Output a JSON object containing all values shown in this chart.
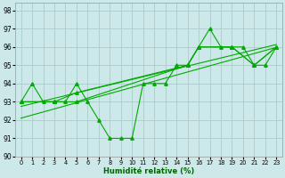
{
  "xlabel": "Humidité relative (%)",
  "background_color": "#cce8e8",
  "grid_color": "#aacccc",
  "line_color": "#00aa00",
  "xlim": [
    -0.5,
    23.5
  ],
  "ylim": [
    90,
    98.4
  ],
  "yticks": [
    90,
    91,
    92,
    93,
    94,
    95,
    96,
    97,
    98
  ],
  "xticks": [
    0,
    1,
    2,
    3,
    4,
    5,
    6,
    7,
    8,
    9,
    10,
    11,
    12,
    13,
    14,
    15,
    16,
    17,
    18,
    19,
    20,
    21,
    22,
    23
  ],
  "series1_x": [
    0,
    1,
    2,
    3,
    4,
    5,
    6,
    7,
    8,
    9,
    10,
    11,
    12,
    13,
    14,
    15,
    16,
    17,
    18,
    19,
    20,
    21,
    22,
    23
  ],
  "series1_y": [
    93,
    94,
    93,
    93,
    93,
    94,
    93,
    92,
    91,
    91,
    91,
    94,
    94,
    94,
    95,
    95,
    96,
    97,
    96,
    96,
    96,
    95,
    95,
    96
  ],
  "series2_x": [
    0,
    3,
    5,
    15,
    16,
    19,
    21,
    23
  ],
  "series2_y": [
    93,
    93,
    93,
    95,
    96,
    96,
    95,
    96
  ],
  "series3_x": [
    0,
    3,
    5,
    15,
    16,
    19,
    21,
    23
  ],
  "series3_y": [
    93,
    93,
    93.5,
    95,
    96,
    96,
    95,
    96
  ],
  "trend1_x": [
    0,
    23
  ],
  "trend1_y": [
    92.5,
    95.8
  ],
  "trend2_x": [
    0,
    23
  ],
  "trend2_y": [
    93.0,
    96.0
  ]
}
